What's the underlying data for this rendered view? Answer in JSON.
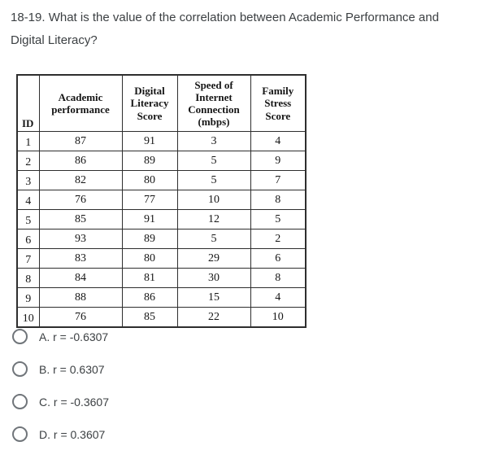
{
  "question": {
    "text": "18-19. What is the value of the correlation between Academic Performance and\nDigital Literacy?"
  },
  "table": {
    "columns": [
      "ID",
      "Academic performance",
      "Digital Literacy Score",
      "Speed of Internet Connection (mbps)",
      "Family Stress Score"
    ],
    "rows": [
      [
        "1",
        "87",
        "91",
        "3",
        "4"
      ],
      [
        "2",
        "86",
        "89",
        "5",
        "9"
      ],
      [
        "3",
        "82",
        "80",
        "5",
        "7"
      ],
      [
        "4",
        "76",
        "77",
        "10",
        "8"
      ],
      [
        "5",
        "85",
        "91",
        "12",
        "5"
      ],
      [
        "6",
        "93",
        "89",
        "5",
        "2"
      ],
      [
        "7",
        "83",
        "80",
        "29",
        "6"
      ],
      [
        "8",
        "84",
        "81",
        "30",
        "8"
      ],
      [
        "9",
        "88",
        "86",
        "15",
        "4"
      ],
      [
        "10",
        "76",
        "85",
        "22",
        "10"
      ]
    ]
  },
  "options": [
    {
      "label": "A. r = -0.6307",
      "selected": false
    },
    {
      "label": "B. r = 0.6307",
      "selected": false
    },
    {
      "label": "C. r = -0.3607",
      "selected": false
    },
    {
      "label": "D. r = 0.3607",
      "selected": false
    }
  ],
  "colors": {
    "question_text": "#3c4043",
    "option_text": "#3c4043",
    "radio_border": "#70757a",
    "table_border": "#2e2e2e",
    "table_text": "#161616",
    "background": "#ffffff"
  }
}
